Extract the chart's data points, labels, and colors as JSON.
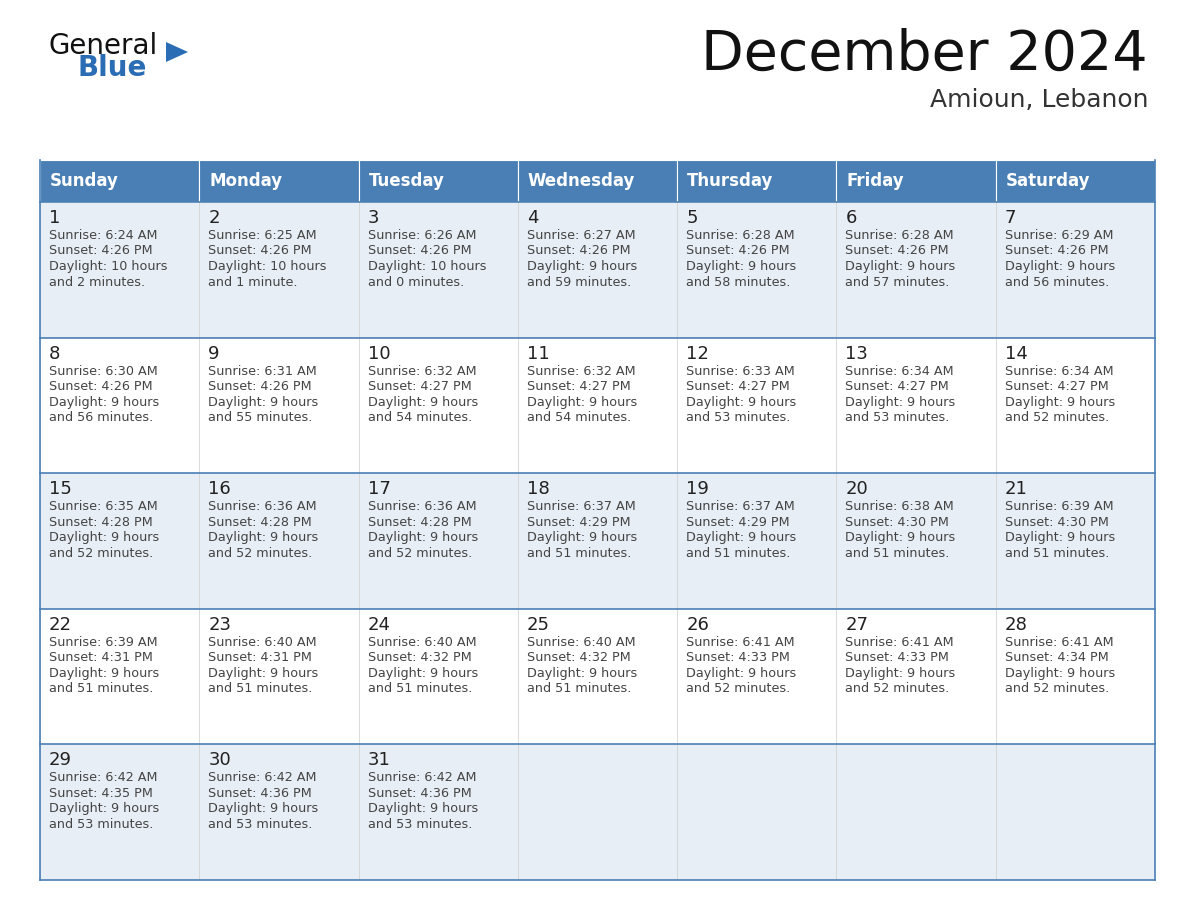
{
  "title": "December 2024",
  "subtitle": "Amioun, Lebanon",
  "days_of_week": [
    "Sunday",
    "Monday",
    "Tuesday",
    "Wednesday",
    "Thursday",
    "Friday",
    "Saturday"
  ],
  "header_bg": "#4a7fb5",
  "header_text_color": "#ffffff",
  "row_bg_odd": "#e8eef5",
  "row_bg_even": "#ffffff",
  "row_separator_color": "#4a7fb5",
  "outer_border_color": "#4a7fb5",
  "title_color": "#111111",
  "subtitle_color": "#333333",
  "day_num_color": "#222222",
  "cell_text_color": "#444444",
  "logo_general_color": "#111111",
  "logo_blue_color": "#2a6db5",
  "weeks": [
    [
      {
        "day": 1,
        "sunrise": "6:24 AM",
        "sunset": "4:26 PM",
        "daylight_line1": "10 hours",
        "daylight_line2": "and 2 minutes."
      },
      {
        "day": 2,
        "sunrise": "6:25 AM",
        "sunset": "4:26 PM",
        "daylight_line1": "10 hours",
        "daylight_line2": "and 1 minute."
      },
      {
        "day": 3,
        "sunrise": "6:26 AM",
        "sunset": "4:26 PM",
        "daylight_line1": "10 hours",
        "daylight_line2": "and 0 minutes."
      },
      {
        "day": 4,
        "sunrise": "6:27 AM",
        "sunset": "4:26 PM",
        "daylight_line1": "9 hours",
        "daylight_line2": "and 59 minutes."
      },
      {
        "day": 5,
        "sunrise": "6:28 AM",
        "sunset": "4:26 PM",
        "daylight_line1": "9 hours",
        "daylight_line2": "and 58 minutes."
      },
      {
        "day": 6,
        "sunrise": "6:28 AM",
        "sunset": "4:26 PM",
        "daylight_line1": "9 hours",
        "daylight_line2": "and 57 minutes."
      },
      {
        "day": 7,
        "sunrise": "6:29 AM",
        "sunset": "4:26 PM",
        "daylight_line1": "9 hours",
        "daylight_line2": "and 56 minutes."
      }
    ],
    [
      {
        "day": 8,
        "sunrise": "6:30 AM",
        "sunset": "4:26 PM",
        "daylight_line1": "9 hours",
        "daylight_line2": "and 56 minutes."
      },
      {
        "day": 9,
        "sunrise": "6:31 AM",
        "sunset": "4:26 PM",
        "daylight_line1": "9 hours",
        "daylight_line2": "and 55 minutes."
      },
      {
        "day": 10,
        "sunrise": "6:32 AM",
        "sunset": "4:27 PM",
        "daylight_line1": "9 hours",
        "daylight_line2": "and 54 minutes."
      },
      {
        "day": 11,
        "sunrise": "6:32 AM",
        "sunset": "4:27 PM",
        "daylight_line1": "9 hours",
        "daylight_line2": "and 54 minutes."
      },
      {
        "day": 12,
        "sunrise": "6:33 AM",
        "sunset": "4:27 PM",
        "daylight_line1": "9 hours",
        "daylight_line2": "and 53 minutes."
      },
      {
        "day": 13,
        "sunrise": "6:34 AM",
        "sunset": "4:27 PM",
        "daylight_line1": "9 hours",
        "daylight_line2": "and 53 minutes."
      },
      {
        "day": 14,
        "sunrise": "6:34 AM",
        "sunset": "4:27 PM",
        "daylight_line1": "9 hours",
        "daylight_line2": "and 52 minutes."
      }
    ],
    [
      {
        "day": 15,
        "sunrise": "6:35 AM",
        "sunset": "4:28 PM",
        "daylight_line1": "9 hours",
        "daylight_line2": "and 52 minutes."
      },
      {
        "day": 16,
        "sunrise": "6:36 AM",
        "sunset": "4:28 PM",
        "daylight_line1": "9 hours",
        "daylight_line2": "and 52 minutes."
      },
      {
        "day": 17,
        "sunrise": "6:36 AM",
        "sunset": "4:28 PM",
        "daylight_line1": "9 hours",
        "daylight_line2": "and 52 minutes."
      },
      {
        "day": 18,
        "sunrise": "6:37 AM",
        "sunset": "4:29 PM",
        "daylight_line1": "9 hours",
        "daylight_line2": "and 51 minutes."
      },
      {
        "day": 19,
        "sunrise": "6:37 AM",
        "sunset": "4:29 PM",
        "daylight_line1": "9 hours",
        "daylight_line2": "and 51 minutes."
      },
      {
        "day": 20,
        "sunrise": "6:38 AM",
        "sunset": "4:30 PM",
        "daylight_line1": "9 hours",
        "daylight_line2": "and 51 minutes."
      },
      {
        "day": 21,
        "sunrise": "6:39 AM",
        "sunset": "4:30 PM",
        "daylight_line1": "9 hours",
        "daylight_line2": "and 51 minutes."
      }
    ],
    [
      {
        "day": 22,
        "sunrise": "6:39 AM",
        "sunset": "4:31 PM",
        "daylight_line1": "9 hours",
        "daylight_line2": "and 51 minutes."
      },
      {
        "day": 23,
        "sunrise": "6:40 AM",
        "sunset": "4:31 PM",
        "daylight_line1": "9 hours",
        "daylight_line2": "and 51 minutes."
      },
      {
        "day": 24,
        "sunrise": "6:40 AM",
        "sunset": "4:32 PM",
        "daylight_line1": "9 hours",
        "daylight_line2": "and 51 minutes."
      },
      {
        "day": 25,
        "sunrise": "6:40 AM",
        "sunset": "4:32 PM",
        "daylight_line1": "9 hours",
        "daylight_line2": "and 51 minutes."
      },
      {
        "day": 26,
        "sunrise": "6:41 AM",
        "sunset": "4:33 PM",
        "daylight_line1": "9 hours",
        "daylight_line2": "and 52 minutes."
      },
      {
        "day": 27,
        "sunrise": "6:41 AM",
        "sunset": "4:33 PM",
        "daylight_line1": "9 hours",
        "daylight_line2": "and 52 minutes."
      },
      {
        "day": 28,
        "sunrise": "6:41 AM",
        "sunset": "4:34 PM",
        "daylight_line1": "9 hours",
        "daylight_line2": "and 52 minutes."
      }
    ],
    [
      {
        "day": 29,
        "sunrise": "6:42 AM",
        "sunset": "4:35 PM",
        "daylight_line1": "9 hours",
        "daylight_line2": "and 53 minutes."
      },
      {
        "day": 30,
        "sunrise": "6:42 AM",
        "sunset": "4:36 PM",
        "daylight_line1": "9 hours",
        "daylight_line2": "and 53 minutes."
      },
      {
        "day": 31,
        "sunrise": "6:42 AM",
        "sunset": "4:36 PM",
        "daylight_line1": "9 hours",
        "daylight_line2": "and 53 minutes."
      },
      null,
      null,
      null,
      null
    ]
  ]
}
